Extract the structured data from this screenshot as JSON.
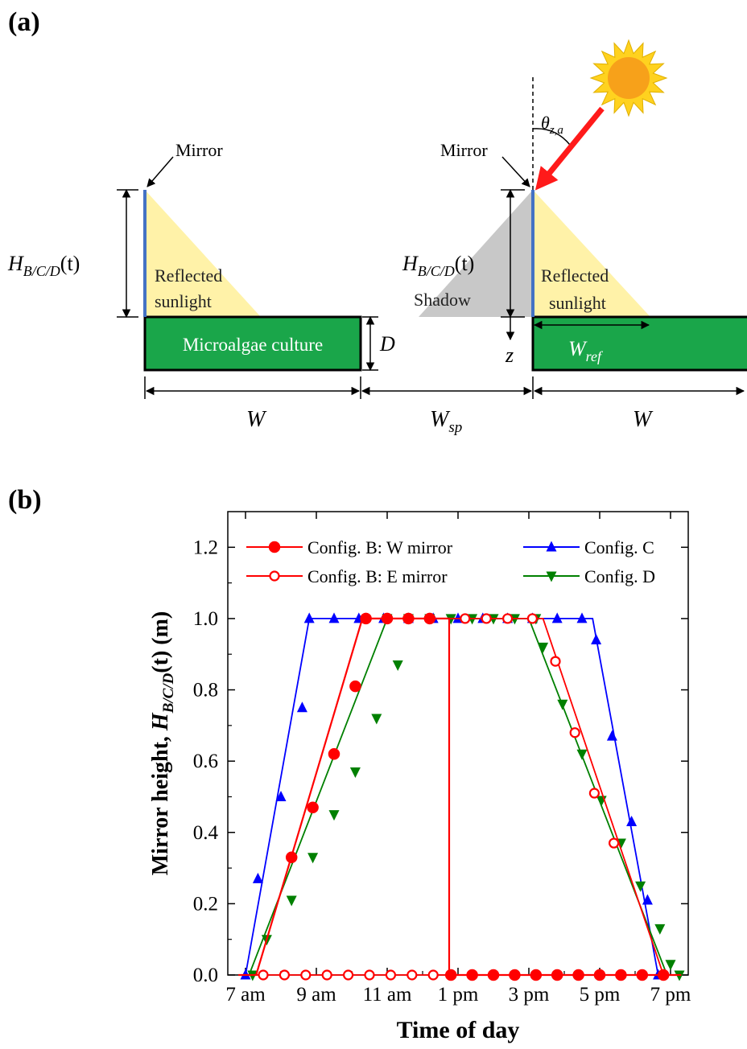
{
  "panel_a": {
    "label": "(a)",
    "left": {
      "mirror_label": "Mirror",
      "height_label": "H",
      "height_sub": "B/C/D",
      "height_tail": "(t)",
      "reflected_line1": "Reflected",
      "reflected_line2": "sunlight",
      "culture_label": "Microalgae culture",
      "depth_label": "D",
      "width_label": "W"
    },
    "right": {
      "mirror_label": "Mirror",
      "height_label": "H",
      "height_sub": "B/C/D",
      "height_tail": "(t)",
      "shadow_label": "Shadow",
      "reflected_line1": "Reflected",
      "reflected_line2": "sunlight",
      "zenith_label": "θ",
      "zenith_sub": "z,a",
      "z_label": "z",
      "wref_label": "W",
      "wref_sub": "ref",
      "width_label": "W"
    },
    "spacing_label": "W",
    "spacing_sub": "sp",
    "colors": {
      "mirror": "#4472c4",
      "reflected": "#fff2a8",
      "shadow": "#c8c8c8",
      "culture": "#1aa64a",
      "sun": "#ffd21f",
      "sun_core": "#f7a11a",
      "ray": "#ff1a1a"
    }
  },
  "panel_b": {
    "label": "(b)",
    "chart_data": {
      "type": "line",
      "xlabel": "Time of day",
      "ylabel_prefix": "Mirror height, ",
      "ylabel_H": "H",
      "ylabel_sub": "B/C/D",
      "ylabel_tail": "(t) (m)",
      "xlim": [
        6.5,
        19.5
      ],
      "ylim": [
        0,
        1.3
      ],
      "x_ticks": [
        7,
        9,
        11,
        13,
        15,
        17,
        19
      ],
      "x_tick_labels": [
        "7 am",
        "9 am",
        "11 am",
        "1 pm",
        "3 pm",
        "5 pm",
        "7 pm"
      ],
      "y_ticks": [
        0.0,
        0.2,
        0.4,
        0.6,
        0.8,
        1.0,
        1.2
      ],
      "y_tick_labels": [
        "0.0",
        "0.2",
        "0.4",
        "0.6",
        "0.8",
        "1.0",
        "1.2"
      ],
      "series": [
        {
          "name": "Config. B: W mirror",
          "color": "#ff0000",
          "marker": "circle-filled",
          "line": [
            [
              6.8,
              0
            ],
            [
              7.3,
              0
            ],
            [
              10.3,
              1.0
            ],
            [
              12.75,
              1.0
            ],
            [
              12.75,
              0
            ],
            [
              19.3,
              0
            ]
          ],
          "markers": [
            [
              8.3,
              0.33
            ],
            [
              8.9,
              0.47
            ],
            [
              9.5,
              0.62
            ],
            [
              10.1,
              0.81
            ],
            [
              10.4,
              1.0
            ],
            [
              11.0,
              1.0
            ],
            [
              11.6,
              1.0
            ],
            [
              12.2,
              1.0
            ],
            [
              12.8,
              0
            ],
            [
              13.4,
              0
            ],
            [
              14.0,
              0
            ],
            [
              14.6,
              0
            ],
            [
              15.2,
              0
            ],
            [
              15.8,
              0
            ],
            [
              16.4,
              0
            ],
            [
              17.0,
              0
            ],
            [
              17.6,
              0
            ],
            [
              18.2,
              0
            ],
            [
              18.8,
              0
            ]
          ]
        },
        {
          "name": "Config. B: E mirror",
          "color": "#ff0000",
          "marker": "circle-open",
          "line": [
            [
              6.8,
              0
            ],
            [
              12.75,
              0
            ],
            [
              12.75,
              1.0
            ],
            [
              15.4,
              1.0
            ],
            [
              18.8,
              0
            ],
            [
              19.3,
              0
            ]
          ],
          "markers": [
            [
              7.5,
              0
            ],
            [
              8.1,
              0
            ],
            [
              8.7,
              0
            ],
            [
              9.3,
              0
            ],
            [
              9.9,
              0
            ],
            [
              10.5,
              0
            ],
            [
              11.1,
              0
            ],
            [
              11.7,
              0
            ],
            [
              12.3,
              0
            ],
            [
              13.2,
              1.0
            ],
            [
              13.8,
              1.0
            ],
            [
              14.4,
              1.0
            ],
            [
              15.1,
              1.0
            ],
            [
              15.75,
              0.88
            ],
            [
              16.3,
              0.68
            ],
            [
              16.85,
              0.51
            ],
            [
              17.4,
              0.37
            ]
          ]
        },
        {
          "name": "Config. C",
          "color": "#0000ff",
          "marker": "triangle-up",
          "line": [
            [
              6.8,
              0
            ],
            [
              7.0,
              0
            ],
            [
              8.8,
              1.0
            ],
            [
              16.8,
              1.0
            ],
            [
              18.65,
              0
            ],
            [
              19.3,
              0
            ]
          ],
          "markers": [
            [
              7.0,
              0
            ],
            [
              7.35,
              0.27
            ],
            [
              8.0,
              0.5
            ],
            [
              8.6,
              0.75
            ],
            [
              8.8,
              1.0
            ],
            [
              9.5,
              1.0
            ],
            [
              10.2,
              1.0
            ],
            [
              10.9,
              1.0
            ],
            [
              11.6,
              1.0
            ],
            [
              12.3,
              1.0
            ],
            [
              13.0,
              1.0
            ],
            [
              13.7,
              1.0
            ],
            [
              14.4,
              1.0
            ],
            [
              15.1,
              1.0
            ],
            [
              15.8,
              1.0
            ],
            [
              16.5,
              1.0
            ],
            [
              16.9,
              0.94
            ],
            [
              17.35,
              0.67
            ],
            [
              17.9,
              0.43
            ],
            [
              18.35,
              0.21
            ],
            [
              18.65,
              0
            ]
          ]
        },
        {
          "name": "Config. D",
          "color": "#008000",
          "marker": "triangle-down",
          "line": [
            [
              6.8,
              0
            ],
            [
              7.1,
              0
            ],
            [
              11.0,
              1.0
            ],
            [
              15.0,
              1.0
            ],
            [
              18.9,
              0
            ],
            [
              19.3,
              0
            ]
          ],
          "markers": [
            [
              7.2,
              0
            ],
            [
              7.6,
              0.1
            ],
            [
              8.3,
              0.21
            ],
            [
              8.9,
              0.33
            ],
            [
              9.5,
              0.45
            ],
            [
              10.1,
              0.57
            ],
            [
              10.7,
              0.72
            ],
            [
              11.3,
              0.87
            ],
            [
              11.0,
              1.0
            ],
            [
              11.6,
              1.0
            ],
            [
              12.2,
              1.0
            ],
            [
              12.8,
              1.0
            ],
            [
              13.4,
              1.0
            ],
            [
              14.0,
              1.0
            ],
            [
              14.6,
              1.0
            ],
            [
              15.2,
              1.0
            ],
            [
              15.4,
              0.92
            ],
            [
              15.95,
              0.76
            ],
            [
              16.5,
              0.62
            ],
            [
              17.05,
              0.49
            ],
            [
              17.6,
              0.37
            ],
            [
              18.15,
              0.25
            ],
            [
              18.7,
              0.13
            ],
            [
              19.0,
              0.03
            ],
            [
              19.25,
              0
            ]
          ]
        }
      ],
      "legend_placement": "top"
    }
  }
}
